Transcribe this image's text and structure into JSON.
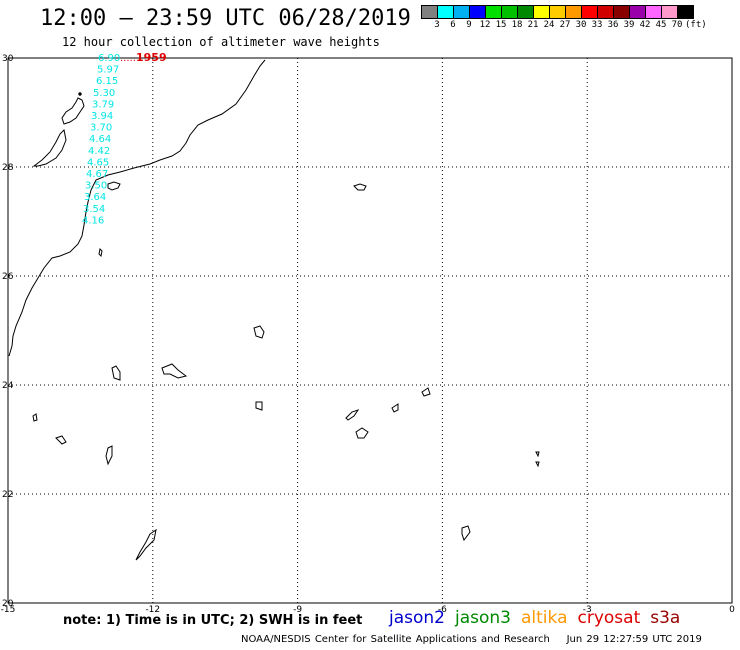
{
  "header": {
    "title": "12:00 – 23:59 UTC 06/28/2019",
    "subtitle": "12 hour collection of altimeter wave heights"
  },
  "legend": {
    "colors": [
      "#808080",
      "#00ffff",
      "#00b0f0",
      "#0000ff",
      "#00e000",
      "#00c000",
      "#008800",
      "#ffff00",
      "#ffcc00",
      "#ff9900",
      "#ff0000",
      "#d00000",
      "#880000",
      "#9900aa",
      "#ff66ff",
      "#ff99cc",
      "#000000"
    ],
    "labels": [
      "3",
      "6",
      "9",
      "12",
      "15",
      "18",
      "21",
      "24",
      "27",
      "30",
      "33",
      "36",
      "39",
      "42",
      "45",
      "70"
    ],
    "unit": "(ft)"
  },
  "map": {
    "lon_range": [
      -15,
      0
    ],
    "lat_range": [
      20,
      30
    ],
    "x_tick_labels": [
      "-15",
      "-12",
      "-9",
      "-6",
      "-3",
      "0"
    ],
    "y_tick_labels": [
      "30",
      "28",
      "26",
      "24",
      "22",
      "20"
    ],
    "track": {
      "time_label": "1959",
      "time_color": "#dd0000",
      "value_color": "#00e5e5",
      "values": [
        "6.90",
        "5.97",
        "6.15",
        "5.30",
        "3.79",
        "3.94",
        "3.70",
        "4.64",
        "4.42",
        "4.65",
        "4.67",
        "3.50",
        "3.64",
        "3.54",
        "4.16"
      ]
    }
  },
  "footer": {
    "note": "note: 1) Time is in UTC; 2) SWH is in feet",
    "satellites": [
      {
        "name": "jason2",
        "color": "#0000cc"
      },
      {
        "name": "jason3",
        "color": "#008800"
      },
      {
        "name": "altika",
        "color": "#ff9900"
      },
      {
        "name": "cryosat",
        "color": "#dd0000"
      },
      {
        "name": "s3a",
        "color": "#990000"
      }
    ],
    "credit": "NOAA/NESDIS Center for Satellite Applications and Research",
    "timestamp": "Jun 29 12:27:59 UTC 2019"
  }
}
